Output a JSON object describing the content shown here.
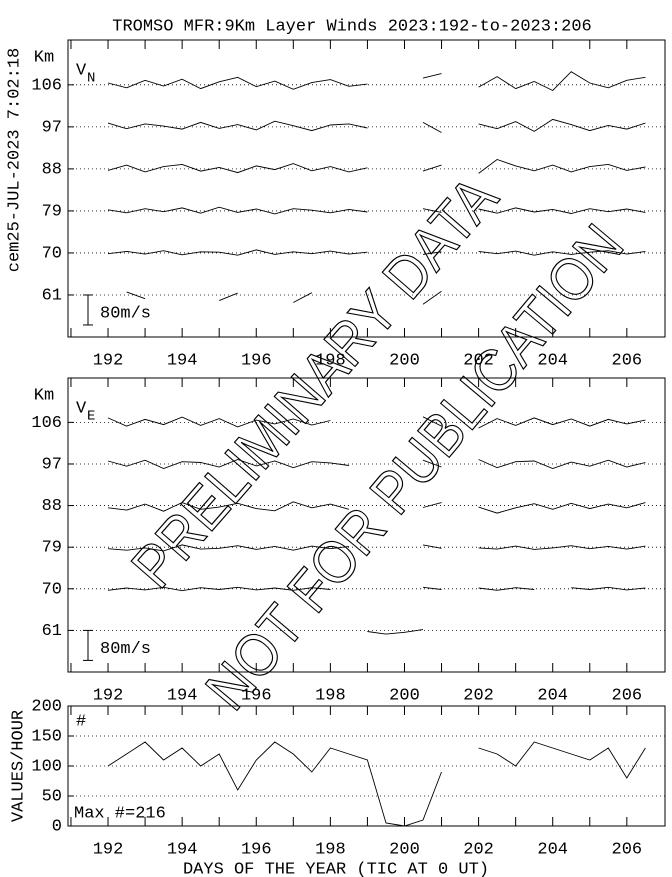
{
  "timestamp": "cem25-JUL-2023 7:02:18",
  "watermark": [
    "PRELIMINARY DATA",
    "NOT FOR PUBLICATION"
  ],
  "chart_data": [
    {
      "type": "traces",
      "title": "TROMSO MFR:9Km Layer Winds 2023:192-to-2023:206",
      "ylabel": "Km",
      "panel_label": "V",
      "panel_subscript": "N",
      "color": "#000000",
      "grid": true,
      "xlim": [
        190.92,
        207.03
      ],
      "xticks": [
        192,
        194,
        196,
        198,
        200,
        202,
        204,
        206
      ],
      "minor_xticks": [
        191,
        193,
        195,
        197,
        199,
        201,
        203,
        205
      ],
      "ylim": [
        52,
        115.6
      ],
      "yticks": [
        61,
        70,
        79,
        88,
        97,
        106
      ],
      "scale_bar": {
        "value": 80,
        "label": "80m/s"
      },
      "x": [
        192,
        192.5,
        193,
        193.5,
        194,
        194.5,
        195,
        195.5,
        196,
        196.5,
        197,
        197.5,
        198,
        198.5,
        199,
        199.5,
        200,
        200.5,
        201,
        201.5,
        202,
        202.5,
        203,
        203.5,
        204,
        204.5,
        205,
        205.5,
        206,
        206.5
      ],
      "series": [
        {
          "values": [
            null,
            8,
            -10,
            null,
            null,
            null,
            -15,
            5,
            null,
            null,
            -20,
            6,
            null,
            null,
            null,
            null,
            null,
            -25,
            10,
            null,
            null,
            -18,
            null,
            null,
            null,
            null,
            null,
            null,
            null,
            null
          ]
        },
        {
          "values": [
            -2,
            4,
            -3,
            6,
            -5,
            3,
            2,
            -6,
            8,
            -4,
            3,
            -2,
            5,
            -3,
            2,
            null,
            null,
            -4,
            3,
            null,
            4,
            -2,
            5,
            -6,
            3,
            -4,
            2,
            6,
            -3,
            4
          ]
        },
        {
          "values": [
            3,
            -5,
            6,
            -2,
            8,
            -6,
            10,
            -4,
            5,
            -8,
            6,
            2,
            -5,
            4,
            -3,
            null,
            null,
            6,
            -4,
            null,
            5,
            -6,
            8,
            -3,
            4,
            -7,
            6,
            -2,
            5,
            -4
          ]
        },
        {
          "values": [
            -4,
            10,
            -8,
            6,
            12,
            -6,
            4,
            -10,
            8,
            -2,
            14,
            -5,
            6,
            -8,
            3,
            null,
            null,
            -6,
            10,
            null,
            -12,
            25,
            8,
            -5,
            10,
            -8,
            6,
            12,
            -4,
            5
          ]
        },
        {
          "values": [
            10,
            -5,
            8,
            2,
            -6,
            12,
            -4,
            6,
            -8,
            15,
            3,
            -10,
            5,
            8,
            -3,
            null,
            null,
            12,
            -15,
            null,
            8,
            -5,
            14,
            -12,
            20,
            6,
            -10,
            4,
            -6,
            10
          ]
        },
        {
          "values": [
            5,
            -8,
            12,
            -3,
            15,
            -10,
            8,
            20,
            -5,
            10,
            -12,
            6,
            14,
            -4,
            2,
            null,
            null,
            18,
            30,
            null,
            -6,
            22,
            -10,
            9,
            -15,
            35,
            5,
            -8,
            12,
            20
          ]
        }
      ]
    },
    {
      "type": "traces",
      "ylabel": "Km",
      "panel_label": "V",
      "panel_subscript": "E",
      "color": "#000000",
      "grid": true,
      "xlim": [
        190.92,
        207.03
      ],
      "xticks": [
        192,
        194,
        196,
        198,
        200,
        202,
        204,
        206
      ],
      "minor_xticks": [
        191,
        193,
        195,
        197,
        199,
        201,
        203,
        205
      ],
      "ylim": [
        52,
        115.6
      ],
      "yticks": [
        61,
        70,
        79,
        88,
        97,
        106
      ],
      "scale_bar": {
        "value": 80,
        "label": "80m/s"
      },
      "x": [
        192,
        192.5,
        193,
        193.5,
        194,
        194.5,
        195,
        195.5,
        196,
        196.5,
        197,
        197.5,
        198,
        198.5,
        199,
        199.5,
        200,
        200.5,
        201,
        201.5,
        202,
        202.5,
        203,
        203.5,
        204,
        204.5,
        205,
        205.5,
        206,
        206.5
      ],
      "series": [
        {
          "values": [
            null,
            null,
            2,
            null,
            -4,
            null,
            -30,
            null,
            3,
            null,
            null,
            2,
            null,
            null,
            -3,
            -10,
            -5,
            2,
            null,
            null,
            null,
            -3,
            null,
            null,
            2,
            null,
            null,
            2,
            null,
            null
          ]
        },
        {
          "values": [
            -4,
            2,
            -3,
            4,
            -5,
            3,
            -2,
            4,
            -3,
            2,
            -4,
            3,
            -2,
            null,
            null,
            null,
            null,
            4,
            -2,
            null,
            2,
            -4,
            3,
            -2,
            null,
            3,
            -2,
            4,
            -3,
            2
          ]
        },
        {
          "values": [
            -4,
            -8,
            -2,
            -10,
            6,
            -5,
            -3,
            4,
            -6,
            2,
            -8,
            3,
            -4,
            2,
            null,
            null,
            null,
            6,
            -3,
            null,
            -2,
            -5,
            3,
            -6,
            -2,
            4,
            -4,
            2,
            -5,
            3
          ]
        },
        {
          "values": [
            -6,
            -12,
            4,
            -15,
            8,
            -10,
            -4,
            6,
            -8,
            -14,
            10,
            -6,
            4,
            -10,
            null,
            null,
            null,
            -5,
            8,
            null,
            -4,
            -20,
            -6,
            5,
            -10,
            6,
            -8,
            4,
            -6,
            8
          ]
        },
        {
          "values": [
            8,
            -6,
            10,
            -12,
            6,
            4,
            -8,
            12,
            -5,
            8,
            -10,
            6,
            3,
            -4,
            null,
            null,
            null,
            10,
            -8,
            null,
            12,
            -10,
            6,
            8,
            -12,
            5,
            -6,
            10,
            -8,
            4
          ]
        },
        {
          "values": [
            12,
            -10,
            8,
            -6,
            14,
            -8,
            10,
            -12,
            6,
            -4,
            9,
            -7,
            5,
            null,
            null,
            null,
            null,
            15,
            -10,
            null,
            -15,
            10,
            -8,
            12,
            -6,
            9,
            -10,
            8,
            -4,
            6
          ]
        }
      ]
    },
    {
      "type": "line",
      "ylabel": "VALUES/HOUR",
      "annotation": "#",
      "note": "Max #=216",
      "xlabel": "DAYS OF THE YEAR (TIC AT 0 UT)",
      "color": "#000000",
      "grid": true,
      "xlim": [
        190.92,
        207.03
      ],
      "xticks": [
        192,
        194,
        196,
        198,
        200,
        202,
        204,
        206
      ],
      "minor_xticks": [
        191,
        193,
        195,
        197,
        199,
        201,
        203,
        205
      ],
      "ylim": [
        0,
        200
      ],
      "yticks": [
        0,
        50,
        100,
        150,
        200
      ],
      "x": [
        192,
        192.5,
        193,
        193.5,
        194,
        194.5,
        195,
        195.5,
        196,
        196.5,
        197,
        197.5,
        198,
        198.5,
        199,
        199.5,
        200,
        200.5,
        201,
        201.5,
        202,
        202.5,
        203,
        203.5,
        204,
        204.5,
        205,
        205.5,
        206,
        206.5
      ],
      "values": [
        100,
        120,
        140,
        110,
        130,
        100,
        120,
        60,
        110,
        140,
        120,
        90,
        130,
        120,
        110,
        5,
        0,
        10,
        90,
        null,
        130,
        120,
        100,
        140,
        130,
        120,
        110,
        130,
        80,
        130
      ]
    }
  ]
}
